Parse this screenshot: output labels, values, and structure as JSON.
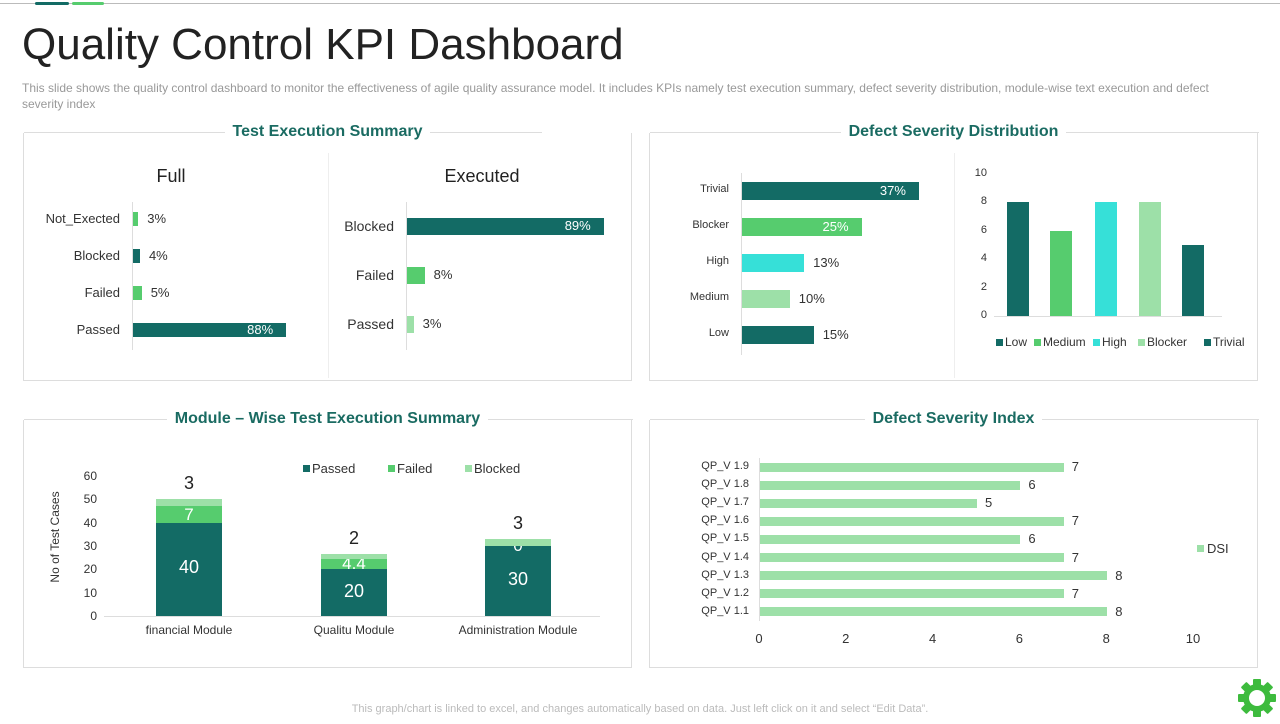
{
  "header": {
    "title": "Quality Control KPI Dashboard",
    "description": "This slide shows the quality control dashboard to monitor the effectiveness  of agile quality assurance model. It includes KPIs namely test execution summary, defect severity distribution, module-wise text execution and defect severity index"
  },
  "colors": {
    "dark": "#136b65",
    "green": "#56cc6e",
    "cyan": "#36e0d8",
    "light": "#9de0a8",
    "title": "#1a6b62"
  },
  "panels": {
    "p1": "Test Execution Summary",
    "p2": "Defect Severity Distribution",
    "p3": "Module – Wise Test Execution Summary",
    "p4": "Defect Severity Index"
  },
  "chart_data": [
    {
      "type": "bar",
      "orientation": "horizontal",
      "title": "Full",
      "categories": [
        "Not_Exected",
        "Blocked",
        "Failed",
        "Passed"
      ],
      "values": [
        3,
        4,
        5,
        88
      ],
      "labels": [
        "3%",
        "4%",
        "5%",
        "88%"
      ],
      "colors": [
        "#56cc6e",
        "#136b65",
        "#56cc6e",
        "#136b65"
      ]
    },
    {
      "type": "bar",
      "orientation": "horizontal",
      "title": "Executed",
      "categories": [
        "Blocked",
        "Failed",
        "Passed"
      ],
      "values": [
        89,
        8,
        3
      ],
      "labels": [
        "89%",
        "8%",
        "3%"
      ],
      "colors": [
        "#136b65",
        "#56cc6e",
        "#9de0a8"
      ]
    },
    {
      "type": "bar",
      "orientation": "horizontal",
      "categories": [
        "Trivial",
        "Blocker",
        "High",
        "Medium",
        "Low"
      ],
      "values": [
        37,
        25,
        13,
        10,
        15
      ],
      "labels": [
        "37%",
        "25%",
        "13%",
        "10%",
        "15%"
      ],
      "colors": [
        "#136b65",
        "#56cc6e",
        "#36e0d8",
        "#9de0a8",
        "#136b65"
      ]
    },
    {
      "type": "bar",
      "categories": [
        "Low",
        "Medium",
        "High",
        "Blocker",
        "Trivial"
      ],
      "values": [
        8,
        6,
        8,
        8,
        5
      ],
      "ylim": [
        0,
        10
      ],
      "yticks": [
        "0",
        "2",
        "4",
        "6",
        "8",
        "10"
      ],
      "legend": "bottom",
      "colors": [
        "#136b65",
        "#56cc6e",
        "#36e0d8",
        "#9de0a8",
        "#136b65"
      ]
    },
    {
      "type": "bar",
      "stacked": true,
      "categories": [
        "financial Module",
        "Qualitu Module",
        "Administration Module"
      ],
      "ylabel": "No of Test Cases",
      "ylim": [
        0,
        60
      ],
      "yticks": [
        "0",
        "10",
        "20",
        "30",
        "40",
        "50",
        "60"
      ],
      "legend": "top",
      "series": [
        {
          "name": "Passed",
          "values": [
            40,
            20,
            30
          ],
          "labels": [
            "40",
            "20",
            "30"
          ],
          "color": "#136b65"
        },
        {
          "name": "Failed",
          "values": [
            7,
            4.4,
            0
          ],
          "labels": [
            "7",
            "4.4",
            "0"
          ],
          "color": "#56cc6e"
        },
        {
          "name": "Blocked",
          "values": [
            3,
            2,
            3
          ],
          "labels": [
            "3",
            "2",
            "3"
          ],
          "color": "#9de0a8"
        }
      ]
    },
    {
      "type": "bar",
      "orientation": "horizontal",
      "categories": [
        "QP_V 1.9",
        "QP_V 1.8",
        "QP_V 1.7",
        "QP_V 1.6",
        "QP_V 1.5",
        "QP_V 1.4",
        "QP_V 1.3",
        "QP_V 1.2",
        "QP_V 1.1"
      ],
      "series": [
        {
          "name": "DSI",
          "values": [
            7,
            6,
            5,
            7,
            6,
            7,
            8,
            7,
            8
          ],
          "labels": [
            "7",
            "6",
            "5",
            "7",
            "6",
            "7",
            "8",
            "7",
            "8"
          ],
          "color": "#9de0a8"
        }
      ],
      "xlim": [
        0,
        10
      ],
      "xticks": [
        "0",
        "2",
        "4",
        "6",
        "8",
        "10"
      ],
      "legend": "right"
    }
  ],
  "footer": "This graph/chart is linked to excel,  and changes automatically based on data. Just left click on it and select “Edit Data”.",
  "icons": {
    "settings": "gear-icon"
  }
}
